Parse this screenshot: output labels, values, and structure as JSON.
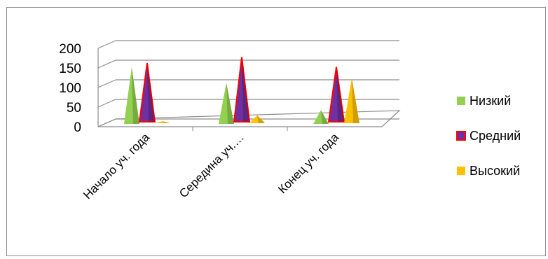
{
  "chart_data": {
    "type": "bar",
    "style": "3d-cone",
    "categories": [
      "Начало уч. года",
      "Середина уч.…",
      "Конец уч. года"
    ],
    "series": [
      {
        "name": "Низкий",
        "color": "#92d050",
        "values": [
          145,
          105,
          35
        ]
      },
      {
        "name": "Средний",
        "color": "#7030a0",
        "outline": "#ff0000",
        "values": [
          150,
          165,
          140
        ]
      },
      {
        "name": "Высокий",
        "color": "#ffc000",
        "values": [
          5,
          20,
          115
        ]
      }
    ],
    "ylim": [
      0,
      200
    ],
    "yticks": [
      "0",
      "50",
      "100",
      "150",
      "200"
    ],
    "grid": true,
    "legend": "right"
  }
}
